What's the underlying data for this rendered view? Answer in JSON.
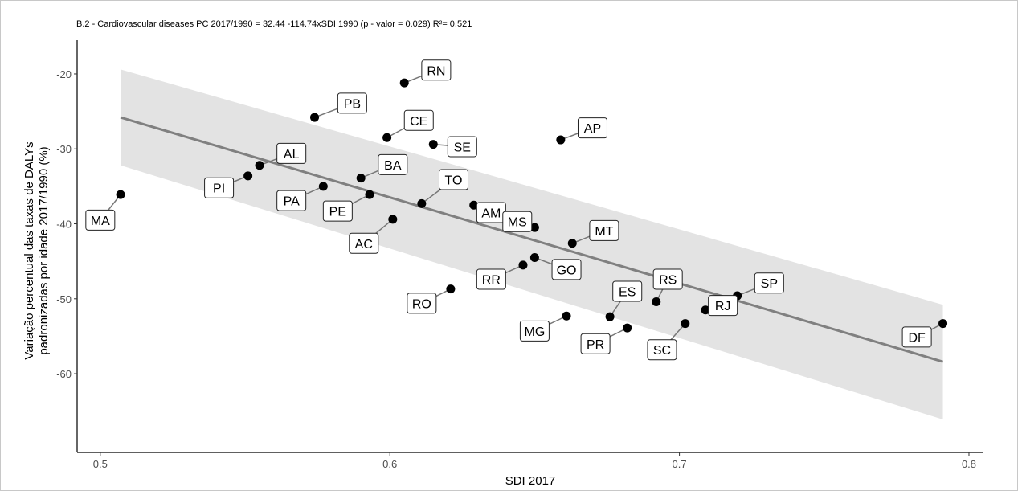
{
  "chart_data": {
    "type": "scatter",
    "title": "B.2 - Cardiovascular diseases PC 2017/1990 = 32.44 -114.74xSDI 1990 (p - valor = 0.029) R²= 0.521",
    "xlabel": "SDI 2017",
    "ylabel_lines": [
      "Variação percentual das taxas de DALYs",
      "padronizadas por idade 2017/1990 (%)"
    ],
    "xlim": [
      0.492,
      0.805
    ],
    "ylim": [
      -70.5,
      -15.5
    ],
    "x_ticks": [
      0.5,
      0.6,
      0.7,
      0.8
    ],
    "x_tick_labels": [
      "0.5",
      "0.6",
      "0.7",
      "0.8"
    ],
    "y_ticks": [
      -20,
      -30,
      -40,
      -50,
      -60
    ],
    "y_tick_labels": [
      "-20",
      "-30",
      "-40",
      "-50",
      "-60"
    ],
    "grid": false,
    "regression": {
      "x": [
        0.507,
        0.791
      ],
      "y": [
        -25.8,
        -58.4
      ],
      "ci_upper": [
        -19.4,
        -50.8
      ],
      "ci_lower": [
        -32.2,
        -66.1
      ],
      "line_color": "#808080",
      "band_color": "#e3e3e3"
    },
    "point_color": "#000000",
    "points": [
      {
        "label": "RN",
        "x": 0.605,
        "y": -21.2,
        "dx": 0.011,
        "dy": 1.7
      },
      {
        "label": "PB",
        "x": 0.574,
        "y": -25.8,
        "dx": 0.013,
        "dy": 1.9
      },
      {
        "label": "CE",
        "x": 0.599,
        "y": -28.5,
        "dx": 0.011,
        "dy": 2.3
      },
      {
        "label": "AP",
        "x": 0.659,
        "y": -28.8,
        "dx": 0.011,
        "dy": 1.6
      },
      {
        "label": "SE",
        "x": 0.615,
        "y": -29.4,
        "dx": 0.01,
        "dy": -0.3
      },
      {
        "label": "AL",
        "x": 0.555,
        "y": -32.2,
        "dx": 0.011,
        "dy": 1.6
      },
      {
        "label": "BA",
        "x": 0.59,
        "y": -33.9,
        "dx": 0.011,
        "dy": 1.8
      },
      {
        "label": "PI",
        "x": 0.551,
        "y": -33.6,
        "dx": -0.01,
        "dy": -1.6
      },
      {
        "label": "PA",
        "x": 0.577,
        "y": -35.0,
        "dx": -0.011,
        "dy": -1.9
      },
      {
        "label": "TO",
        "x": 0.611,
        "y": -37.3,
        "dx": 0.011,
        "dy": 3.2
      },
      {
        "label": "PE",
        "x": 0.593,
        "y": -36.1,
        "dx": -0.011,
        "dy": -2.2
      },
      {
        "label": "MA",
        "x": 0.507,
        "y": -36.1,
        "dx": -0.007,
        "dy": -3.4
      },
      {
        "label": "AM",
        "x": 0.629,
        "y": -37.5,
        "dx": 0.006,
        "dy": -1.0
      },
      {
        "label": "MS",
        "x": 0.65,
        "y": -40.5,
        "dx": -0.006,
        "dy": 0.8
      },
      {
        "label": "AC",
        "x": 0.601,
        "y": -39.4,
        "dx": -0.01,
        "dy": -3.2
      },
      {
        "label": "MT",
        "x": 0.663,
        "y": -42.6,
        "dx": 0.011,
        "dy": 1.7
      },
      {
        "label": "GO",
        "x": 0.65,
        "y": -44.5,
        "dx": 0.011,
        "dy": -1.6
      },
      {
        "label": "RR",
        "x": 0.646,
        "y": -45.5,
        "dx": -0.011,
        "dy": -1.9
      },
      {
        "label": "RO",
        "x": 0.621,
        "y": -48.7,
        "dx": -0.01,
        "dy": -1.9
      },
      {
        "label": "ES",
        "x": 0.676,
        "y": -52.4,
        "dx": 0.006,
        "dy": 3.4
      },
      {
        "label": "RS",
        "x": 0.692,
        "y": -50.4,
        "dx": 0.004,
        "dy": 3.0
      },
      {
        "label": "SP",
        "x": 0.72,
        "y": -49.6,
        "dx": 0.011,
        "dy": 1.7
      },
      {
        "label": "RJ",
        "x": 0.709,
        "y": -51.5,
        "dx": 0.006,
        "dy": 0.6
      },
      {
        "label": "MG",
        "x": 0.661,
        "y": -52.3,
        "dx": -0.011,
        "dy": -2.0
      },
      {
        "label": "PR",
        "x": 0.682,
        "y": -53.9,
        "dx": -0.011,
        "dy": -2.1
      },
      {
        "label": "SC",
        "x": 0.702,
        "y": -53.3,
        "dx": -0.008,
        "dy": -3.5
      },
      {
        "label": "DF",
        "x": 0.791,
        "y": -53.3,
        "dx": -0.009,
        "dy": -1.8
      }
    ]
  }
}
